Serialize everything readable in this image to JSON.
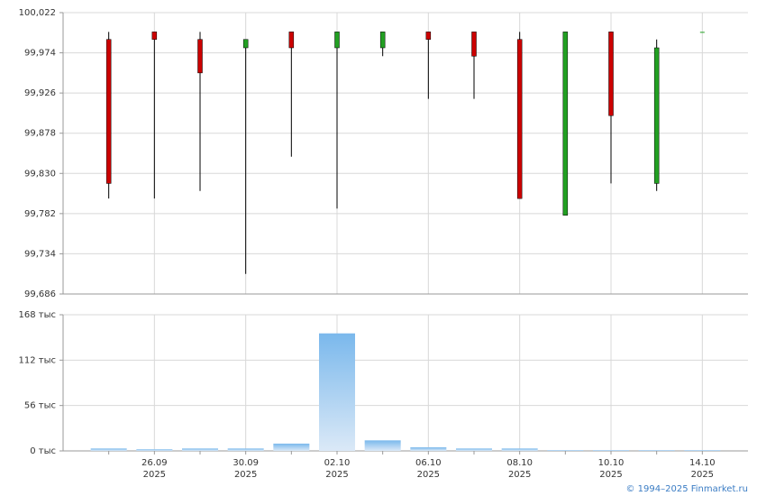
{
  "chart_data": [
    {
      "type": "candlestick",
      "open": [
        99.99,
        99.999,
        99.99,
        99.98,
        99.999,
        99.98,
        99.98,
        99.999,
        99.999,
        99.99,
        99.78,
        99.999,
        99.818,
        99.999
      ],
      "high": [
        99.999,
        99.999,
        99.999,
        99.99,
        99.999,
        99.999,
        99.999,
        99.999,
        99.999,
        99.999,
        99.999,
        99.999,
        99.99,
        99.999
      ],
      "low": [
        99.8,
        99.8,
        99.809,
        99.71,
        99.85,
        99.788,
        99.97,
        99.919,
        99.919,
        99.8,
        99.78,
        99.818,
        99.809,
        99.999
      ],
      "close": [
        99.818,
        99.99,
        99.95,
        99.99,
        99.98,
        99.999,
        99.999,
        99.99,
        99.97,
        99.8,
        99.999,
        99.899,
        99.98,
        99.999
      ],
      "up_color": "#22a022",
      "down_color": "#cc0000",
      "ylim": [
        99.686,
        100.022
      ],
      "yticks": [
        {
          "value": 99.686,
          "label": "99,686"
        },
        {
          "value": 99.734,
          "label": "99,734"
        },
        {
          "value": 99.782,
          "label": "99,782"
        },
        {
          "value": 99.83,
          "label": "99,830"
        },
        {
          "value": 99.878,
          "label": "99,878"
        },
        {
          "value": 99.926,
          "label": "99,926"
        },
        {
          "value": 99.974,
          "label": "99,974"
        },
        {
          "value": 100.022,
          "label": "100,022"
        }
      ],
      "grid": true
    },
    {
      "type": "bar",
      "categories": [
        null,
        "26.09",
        null,
        "30.09",
        null,
        "02.10",
        null,
        "06.10",
        null,
        "08.10",
        null,
        "10.10",
        null,
        "14.10"
      ],
      "category_years": [
        null,
        "2025",
        null,
        "2025",
        null,
        "2025",
        null,
        "2025",
        null,
        "2025",
        null,
        "2025",
        null,
        "2025"
      ],
      "values": [
        3000,
        2000,
        3000,
        3000,
        9000,
        145000,
        13000,
        4500,
        3000,
        3000,
        1000,
        1000,
        1000,
        1000
      ],
      "color": "#7ab8ec",
      "ylim": [
        0,
        168000
      ],
      "yticks": [
        {
          "value": 0,
          "label": "0 тыс"
        },
        {
          "value": 56000,
          "label": "56 тыс"
        },
        {
          "value": 112000,
          "label": "112 тыс"
        },
        {
          "value": 168000,
          "label": "168 тыс"
        }
      ],
      "grid": true
    }
  ],
  "footer": "© 1994–2025 Finmarket.ru"
}
